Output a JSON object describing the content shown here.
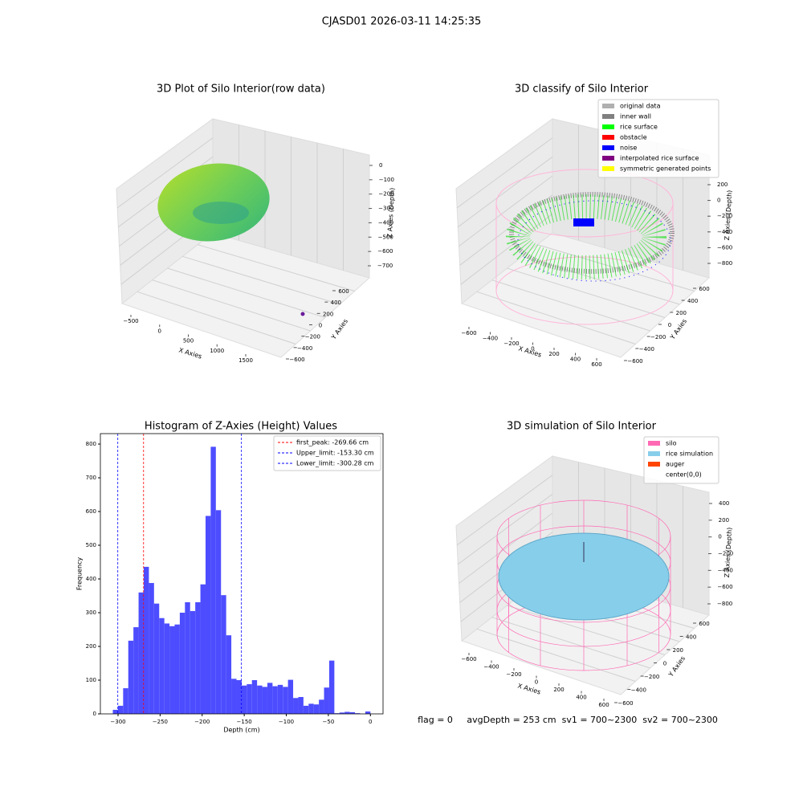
{
  "title": "CJASD01 2026-03-11 14:25:35",
  "footer": "flag = 0     avgDepth = 253 cm  sv1 = 700~2300  sv2 = 700~2300",
  "chart_data": [
    {
      "type": "scatter3d",
      "title": "3D Plot of Silo Interior(row data)",
      "xlabel": "X Axies",
      "ylabel": "Y Axies",
      "zlabel": "Z Axies (Depth)",
      "xticks": [
        {
          "value": -500,
          "label": "−500"
        },
        0,
        500,
        1000,
        1500
      ],
      "yticks": [
        {
          "value": -600,
          "label": "−600"
        },
        {
          "value": -400,
          "label": "−400"
        },
        {
          "value": -200,
          "label": "−200"
        },
        0,
        200,
        400,
        600
      ],
      "zticks": [
        0,
        {
          "value": -100,
          "label": "−100"
        },
        {
          "value": -200,
          "label": "−200"
        },
        {
          "value": -300,
          "label": "−300"
        },
        {
          "value": -400,
          "label": "−400"
        },
        {
          "value": -500,
          "label": "−500"
        },
        {
          "value": -600,
          "label": "−600"
        },
        {
          "value": -700,
          "label": "−700"
        }
      ]
    },
    {
      "type": "scatter3d",
      "title": "3D classify of Silo Interior",
      "xlabel": "X Axies",
      "ylabel": "Y Axies",
      "zlabel": "Z Axies (Depth)",
      "xticks": [
        {
          "value": -600,
          "label": "−600"
        },
        {
          "value": -400,
          "label": "−400"
        },
        {
          "value": -200,
          "label": "−200"
        },
        0,
        200,
        400,
        600
      ],
      "yticks": [
        {
          "value": -600,
          "label": "−600"
        },
        {
          "value": -400,
          "label": "−400"
        },
        {
          "value": -200,
          "label": "−200"
        },
        0,
        200,
        400,
        600
      ],
      "zticks": [
        200,
        0,
        {
          "value": -200,
          "label": "−200"
        },
        {
          "value": -400,
          "label": "−400"
        },
        {
          "value": -600,
          "label": "−600"
        },
        {
          "value": -800,
          "label": "−800"
        }
      ],
      "series": [
        {
          "name": "original data",
          "color": "#b0b0b0"
        },
        {
          "name": "inner wall",
          "color": "#808080"
        },
        {
          "name": "rice surface",
          "color": "#00ff00"
        },
        {
          "name": "obstacle",
          "color": "#ff0000"
        },
        {
          "name": "noise",
          "color": "#0000ff"
        },
        {
          "name": "interpolated rice surface",
          "color": "#800080"
        },
        {
          "name": "symmetric generated points",
          "color": "#ffff00"
        }
      ]
    },
    {
      "type": "histogram",
      "title": "Histogram of Z-Axies (Height) Values",
      "xlabel": "Depth (cm)",
      "ylabel": "Frequency",
      "color": "#4d4dff",
      "bins": [
        -306.2,
        -300.08,
        -293.95,
        -287.83,
        -281.7,
        -275.58,
        -269.46,
        -263.33,
        -257.21,
        -251.08,
        -244.96,
        -238.84,
        -232.71,
        -226.59,
        -220.46,
        -214.34,
        -208.22,
        -202.09,
        -195.97,
        -189.84,
        -183.72,
        -177.6,
        -171.47,
        -165.35,
        -159.22,
        -153.1,
        -146.98,
        -140.85,
        -134.73,
        -128.6,
        -122.48,
        -116.36,
        -110.23,
        -104.11,
        -97.98,
        -91.86,
        -85.74,
        -79.61,
        -73.49,
        -67.36,
        -61.24,
        -55.12,
        -48.99,
        -42.87,
        -36.74,
        -30.62,
        -24.5,
        -18.37,
        -12.25,
        -6.12,
        0
      ],
      "values": [
        12,
        24,
        76,
        217,
        257,
        360,
        436,
        388,
        327,
        284,
        268,
        260,
        265,
        300,
        331,
        305,
        331,
        384,
        587,
        792,
        604,
        352,
        233,
        104,
        100,
        84,
        88,
        100,
        84,
        80,
        92,
        82,
        86,
        80,
        101,
        47,
        50,
        24,
        30,
        28,
        42,
        78,
        158,
        2,
        4,
        6,
        5,
        2,
        0,
        7
      ],
      "lines": [
        {
          "name": "first_peak: -269.66 cm",
          "value": -269.66,
          "color": "#ff0000"
        },
        {
          "name": "Upper_limit: -153.30 cm",
          "value": -153.3,
          "color": "#0000ff"
        },
        {
          "name": "Lower_limit: -300.28 cm",
          "value": -300.28,
          "color": "#0000ff"
        }
      ],
      "xlim": [
        -321,
        15
      ],
      "ylim": [
        0,
        831
      ],
      "xticks": [
        {
          "value": -300,
          "label": "−300"
        },
        {
          "value": -250,
          "label": "−250"
        },
        {
          "value": -200,
          "label": "−200"
        },
        {
          "value": -150,
          "label": "−150"
        },
        {
          "value": -100,
          "label": "−100"
        },
        {
          "value": -50,
          "label": "−50"
        },
        0
      ],
      "yticks": [
        0,
        100,
        200,
        300,
        400,
        500,
        600,
        700,
        800
      ]
    },
    {
      "type": "surface3d",
      "title": "3D simulation of Silo Interior",
      "xlabel": "X Axies",
      "ylabel": "Y Axies",
      "zlabel": "Z Axies (Depth)",
      "xticks": [
        {
          "value": -600,
          "label": "−600"
        },
        {
          "value": -400,
          "label": "−400"
        },
        {
          "value": -200,
          "label": "−200"
        },
        0,
        200,
        400,
        600
      ],
      "yticks": [
        {
          "value": -600,
          "label": "−600"
        },
        {
          "value": -400,
          "label": "−400"
        },
        {
          "value": -200,
          "label": "−200"
        },
        0,
        200,
        400,
        600
      ],
      "zticks": [
        400,
        200,
        0,
        {
          "value": -200,
          "label": "−200"
        },
        {
          "value": -400,
          "label": "−400"
        },
        {
          "value": -600,
          "label": "−600"
        },
        {
          "value": -800,
          "label": "−800"
        }
      ],
      "series": [
        {
          "name": "silo",
          "color": "#ff69b4"
        },
        {
          "name": "rice simulation",
          "color": "#87ceeb"
        },
        {
          "name": "auger",
          "color": "#ff4500"
        },
        {
          "name": "center(0,0)",
          "color": "#ffffff"
        }
      ]
    }
  ]
}
